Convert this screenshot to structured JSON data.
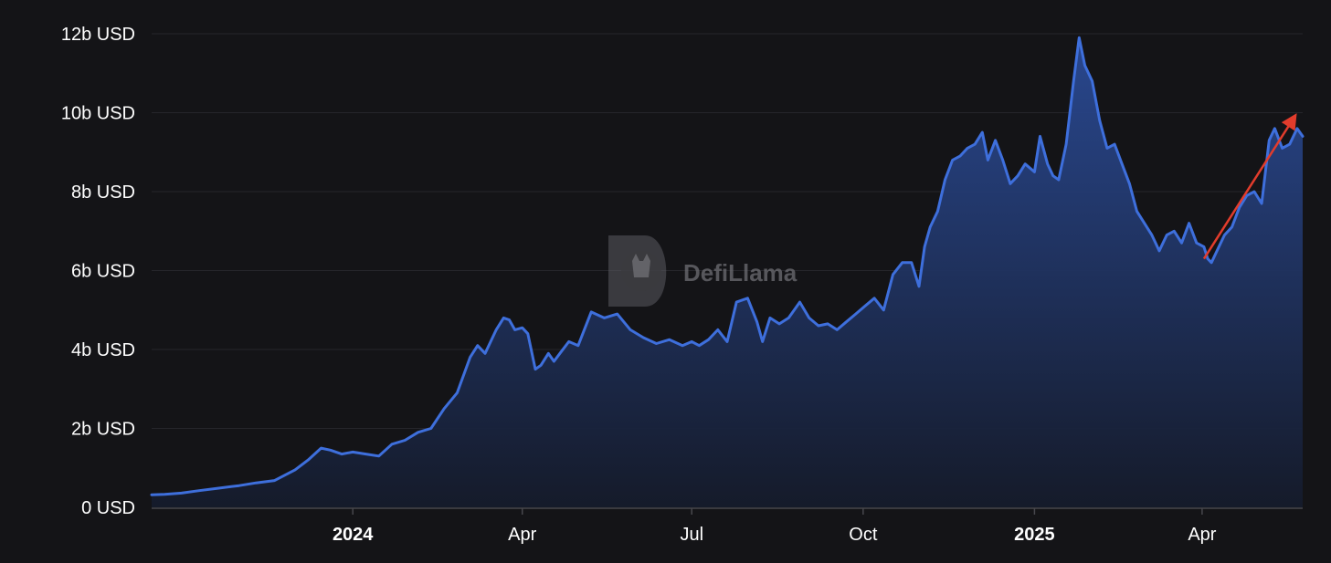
{
  "colors": {
    "background": "#141417",
    "line": "#3e6fdc",
    "area_top": "#2a4a95",
    "area_bottom": "#151b2b",
    "grid": "#26262b",
    "axis": "#47474d",
    "tick_text": "#ffffff",
    "arrow": "#e23c2c",
    "watermark": "#5a5a60"
  },
  "watermark": {
    "text": "DefiLlama",
    "icon": "llama-logo-icon"
  },
  "chart_data": {
    "type": "area",
    "title": "",
    "xlabel": "",
    "ylabel": "",
    "y_unit": "USD",
    "ylim": [
      0,
      12000000000
    ],
    "yticks": [
      "0 USD",
      "2b USD",
      "4b USD",
      "6b USD",
      "8b USD",
      "10b USD",
      "12b USD"
    ],
    "xlim": [
      "2023-09-15",
      "2025-05-25"
    ],
    "xticks": [
      {
        "date": "2024-01-01",
        "label": "2024",
        "bold": true
      },
      {
        "date": "2024-04-01",
        "label": "Apr",
        "bold": false
      },
      {
        "date": "2024-07-01",
        "label": "Jul",
        "bold": false
      },
      {
        "date": "2024-10-01",
        "label": "Oct",
        "bold": false
      },
      {
        "date": "2025-01-01",
        "label": "2025",
        "bold": true
      },
      {
        "date": "2025-04-01",
        "label": "Apr",
        "bold": false
      }
    ],
    "grid": true,
    "legend": "none",
    "series": [
      {
        "x": [
          "2023-09-15",
          "2023-09-22",
          "2023-10-01",
          "2023-10-10",
          "2023-10-20",
          "2023-11-01",
          "2023-11-10",
          "2023-11-20",
          "2023-12-01",
          "2023-12-08",
          "2023-12-15",
          "2023-12-20",
          "2023-12-26",
          "2024-01-01",
          "2024-01-08",
          "2024-01-15",
          "2024-01-22",
          "2024-01-29",
          "2024-02-05",
          "2024-02-12",
          "2024-02-19",
          "2024-02-26",
          "2024-03-04",
          "2024-03-08",
          "2024-03-12",
          "2024-03-15",
          "2024-03-18",
          "2024-03-22",
          "2024-03-25",
          "2024-03-28",
          "2024-04-01",
          "2024-04-04",
          "2024-04-08",
          "2024-04-11",
          "2024-04-13",
          "2024-04-15",
          "2024-04-18",
          "2024-04-22",
          "2024-04-26",
          "2024-05-01",
          "2024-05-08",
          "2024-05-15",
          "2024-05-22",
          "2024-05-29",
          "2024-06-05",
          "2024-06-12",
          "2024-06-19",
          "2024-06-26",
          "2024-07-01",
          "2024-07-05",
          "2024-07-10",
          "2024-07-15",
          "2024-07-20",
          "2024-07-25",
          "2024-07-31",
          "2024-08-05",
          "2024-08-08",
          "2024-08-12",
          "2024-08-17",
          "2024-08-22",
          "2024-08-28",
          "2024-09-02",
          "2024-09-07",
          "2024-09-12",
          "2024-09-17",
          "2024-09-22",
          "2024-09-27",
          "2024-10-02",
          "2024-10-07",
          "2024-10-12",
          "2024-10-17",
          "2024-10-22",
          "2024-10-27",
          "2024-10-31",
          "2024-11-03",
          "2024-11-06",
          "2024-11-10",
          "2024-11-14",
          "2024-11-18",
          "2024-11-22",
          "2024-11-26",
          "2024-11-30",
          "2024-12-04",
          "2024-12-07",
          "2024-12-11",
          "2024-12-15",
          "2024-12-19",
          "2024-12-23",
          "2024-12-27",
          "2025-01-01",
          "2025-01-04",
          "2025-01-08",
          "2025-01-11",
          "2025-01-14",
          "2025-01-18",
          "2025-01-22",
          "2025-01-25",
          "2025-01-28",
          "2025-02-01",
          "2025-02-05",
          "2025-02-09",
          "2025-02-13",
          "2025-02-17",
          "2025-02-21",
          "2025-02-25",
          "2025-03-01",
          "2025-03-05",
          "2025-03-09",
          "2025-03-13",
          "2025-03-17",
          "2025-03-21",
          "2025-03-25",
          "2025-03-29",
          "2025-04-02",
          "2025-04-04",
          "2025-04-06",
          "2025-04-09",
          "2025-04-13",
          "2025-04-17",
          "2025-04-21",
          "2025-04-25",
          "2025-04-29",
          "2025-05-03",
          "2025-05-07",
          "2025-05-10",
          "2025-05-14",
          "2025-05-18",
          "2025-05-22",
          "2025-05-25"
        ],
        "values": [
          320000000,
          330000000,
          360000000,
          420000000,
          480000000,
          550000000,
          620000000,
          680000000,
          950000000,
          1200000000,
          1500000000,
          1450000000,
          1350000000,
          1400000000,
          1350000000,
          1300000000,
          1600000000,
          1700000000,
          1900000000,
          2000000000,
          2500000000,
          2900000000,
          3800000000,
          4100000000,
          3900000000,
          4200000000,
          4500000000,
          4800000000,
          4750000000,
          4500000000,
          4550000000,
          4400000000,
          3500000000,
          3600000000,
          3750000000,
          3900000000,
          3700000000,
          3950000000,
          4200000000,
          4100000000,
          4950000000,
          4800000000,
          4900000000,
          4500000000,
          4300000000,
          4150000000,
          4250000000,
          4100000000,
          4200000000,
          4100000000,
          4250000000,
          4500000000,
          4200000000,
          5200000000,
          5300000000,
          4700000000,
          4200000000,
          4800000000,
          4650000000,
          4800000000,
          5200000000,
          4800000000,
          4600000000,
          4650000000,
          4500000000,
          4700000000,
          4900000000,
          5100000000,
          5300000000,
          5000000000,
          5900000000,
          6200000000,
          6200000000,
          5600000000,
          6600000000,
          7100000000,
          7500000000,
          8300000000,
          8800000000,
          8900000000,
          9100000000,
          9200000000,
          9500000000,
          8800000000,
          9300000000,
          8800000000,
          8200000000,
          8400000000,
          8700000000,
          8500000000,
          9400000000,
          8700000000,
          8400000000,
          8300000000,
          9200000000,
          10800000000,
          11900000000,
          11200000000,
          10800000000,
          9800000000,
          9100000000,
          9200000000,
          8700000000,
          8200000000,
          7500000000,
          7200000000,
          6900000000,
          6500000000,
          6900000000,
          7000000000,
          6700000000,
          7200000000,
          6700000000,
          6600000000,
          6300000000,
          6200000000,
          6500000000,
          6900000000,
          7100000000,
          7600000000,
          7900000000,
          8000000000,
          7700000000,
          9300000000,
          9600000000,
          9100000000,
          9200000000,
          9600000000,
          9400000000
        ]
      }
    ],
    "annotations": [
      {
        "type": "arrow",
        "from": {
          "x": "2025-04-02",
          "y": 6300000000
        },
        "to": {
          "x": "2025-05-20",
          "y": 9850000000
        }
      }
    ]
  }
}
